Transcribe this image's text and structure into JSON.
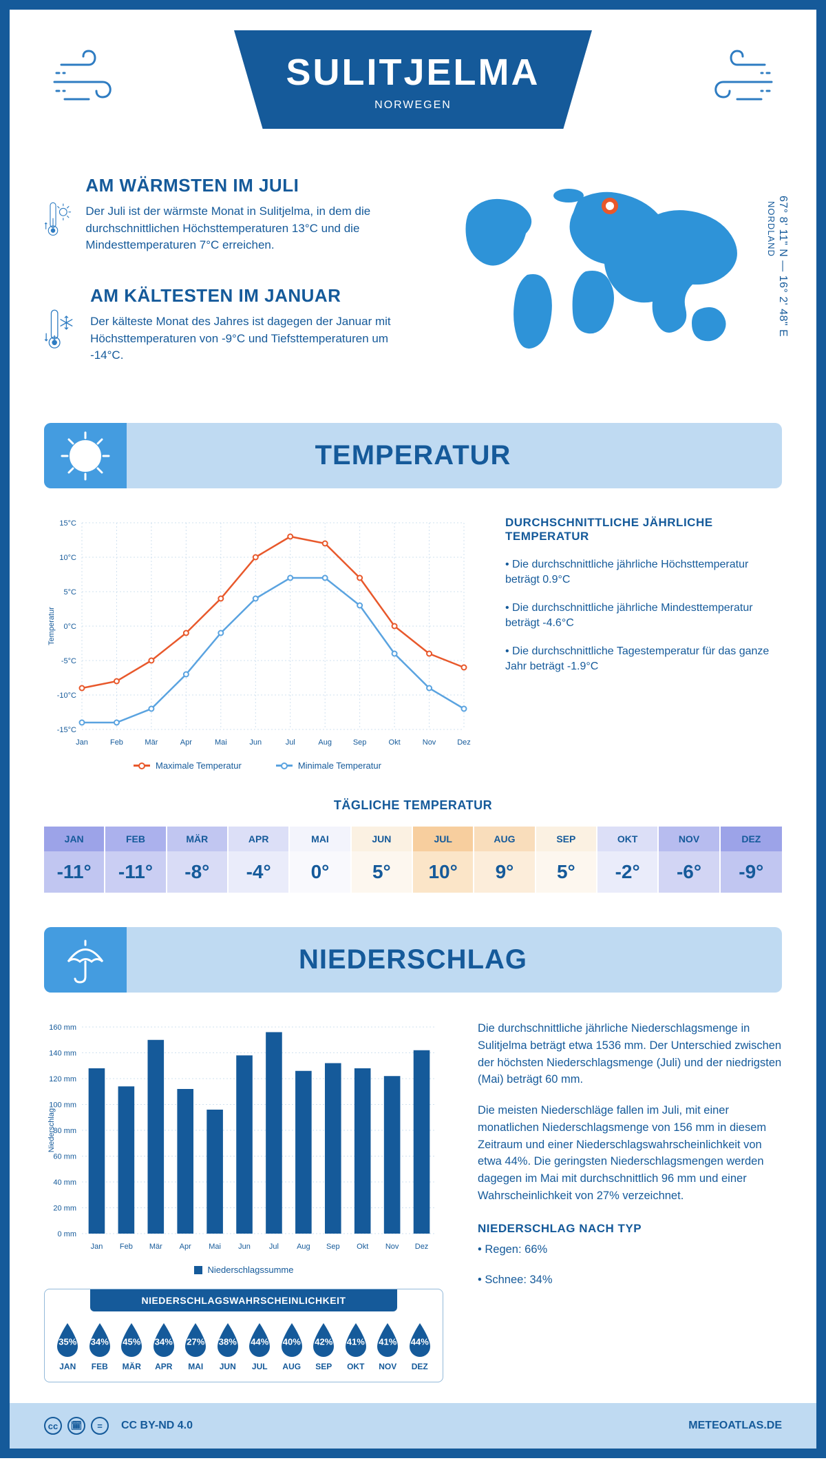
{
  "header": {
    "title": "SULITJELMA",
    "country": "NORWEGEN"
  },
  "coords": {
    "lat": "67° 8' 11\" N",
    "lon": "16° 2' 48\" E",
    "region": "NORDLAND"
  },
  "warmest": {
    "title": "AM WÄRMSTEN IM JULI",
    "text": "Der Juli ist der wärmste Monat in Sulitjelma, in dem die durchschnittlichen Höchsttemperaturen 13°C und die Mindesttemperaturen 7°C erreichen."
  },
  "coldest": {
    "title": "AM KÄLTESTEN IM JANUAR",
    "text": "Der kälteste Monat des Jahres ist dagegen der Januar mit Höchsttemperaturen von -9°C und Tiefsttemperaturen um -14°C."
  },
  "temp_section": {
    "title": "TEMPERATUR"
  },
  "temp_chart": {
    "type": "line",
    "ylabel": "Temperatur",
    "months": [
      "Jan",
      "Feb",
      "Mär",
      "Apr",
      "Mai",
      "Jun",
      "Jul",
      "Aug",
      "Sep",
      "Okt",
      "Nov",
      "Dez"
    ],
    "max_series": {
      "label": "Maximale Temperatur",
      "color": "#e8582b",
      "values": [
        -9,
        -8,
        -5,
        -1,
        4,
        10,
        13,
        12,
        7,
        0,
        -4,
        -6
      ]
    },
    "min_series": {
      "label": "Minimale Temperatur",
      "color": "#5aa3e0",
      "values": [
        -14,
        -14,
        -12,
        -7,
        -1,
        4,
        7,
        7,
        3,
        -4,
        -9,
        -12
      ]
    },
    "ylim": [
      -15,
      15
    ],
    "ytick_step": 5,
    "grid_color": "#cfe0ef",
    "background": "#ffffff",
    "line_width": 2.5,
    "marker_radius": 3.5
  },
  "temp_text": {
    "title": "DURCHSCHNITTLICHE JÄHRLICHE TEMPERATUR",
    "b1": "• Die durchschnittliche jährliche Höchsttemperatur beträgt 0.9°C",
    "b2": "• Die durchschnittliche jährliche Mindesttemperatur beträgt -4.6°C",
    "b3": "• Die durchschnittliche Tagestemperatur für das ganze Jahr beträgt -1.9°C"
  },
  "daily": {
    "title": "TÄGLICHE TEMPERATUR",
    "months": [
      "JAN",
      "FEB",
      "MÄR",
      "APR",
      "MAI",
      "JUN",
      "JUL",
      "AUG",
      "SEP",
      "OKT",
      "NOV",
      "DEZ"
    ],
    "values": [
      "-11°",
      "-11°",
      "-8°",
      "-4°",
      "0°",
      "5°",
      "10°",
      "9°",
      "5°",
      "-2°",
      "-6°",
      "-9°"
    ],
    "head_colors": [
      "#9ca3e8",
      "#abb1ed",
      "#c1c6f1",
      "#dcdff7",
      "#f3f4fc",
      "#fbf1e2",
      "#f7ce9e",
      "#f9ddbb",
      "#fbf1e2",
      "#dcdff7",
      "#b7bcef",
      "#9ca3e8"
    ],
    "val_colors": [
      "#c1c6f1",
      "#cacef3",
      "#d9dcf6",
      "#eaecfa",
      "#f9f9fd",
      "#fdf7ef",
      "#fbe5c8",
      "#fcedda",
      "#fdf7ef",
      "#eaecfa",
      "#d2d5f4",
      "#c1c6f1"
    ]
  },
  "precip_section": {
    "title": "NIEDERSCHLAG"
  },
  "precip_chart": {
    "type": "bar",
    "ylabel": "Niederschlag",
    "legend": "Niederschlagssumme",
    "months": [
      "Jan",
      "Feb",
      "Mär",
      "Apr",
      "Mai",
      "Jun",
      "Jul",
      "Aug",
      "Sep",
      "Okt",
      "Nov",
      "Dez"
    ],
    "values": [
      128,
      114,
      150,
      112,
      96,
      138,
      156,
      126,
      132,
      128,
      122,
      142
    ],
    "ylim": [
      0,
      160
    ],
    "ytick_step": 20,
    "bar_color": "#155a9a",
    "grid_color": "#cfe0ef",
    "background": "#ffffff",
    "bar_width": 0.55
  },
  "precip_text": {
    "p1": "Die durchschnittliche jährliche Niederschlagsmenge in Sulitjelma beträgt etwa 1536 mm. Der Unterschied zwischen der höchsten Niederschlagsmenge (Juli) und der niedrigsten (Mai) beträgt 60 mm.",
    "p2": "Die meisten Niederschläge fallen im Juli, mit einer monatlichen Niederschlagsmenge von 156 mm in diesem Zeitraum und einer Niederschlagswahrscheinlichkeit von etwa 44%. Die geringsten Niederschlagsmengen werden dagegen im Mai mit durchschnittlich 96 mm und einer Wahrscheinlichkeit von 27% verzeichnet.",
    "type_title": "NIEDERSCHLAG NACH TYP",
    "type_1": "• Regen: 66%",
    "type_2": "• Schnee: 34%"
  },
  "prob": {
    "title": "NIEDERSCHLAGSWAHRSCHEINLICHKEIT",
    "months": [
      "JAN",
      "FEB",
      "MÄR",
      "APR",
      "MAI",
      "JUN",
      "JUL",
      "AUG",
      "SEP",
      "OKT",
      "NOV",
      "DEZ"
    ],
    "values": [
      "35%",
      "34%",
      "45%",
      "34%",
      "27%",
      "38%",
      "44%",
      "40%",
      "42%",
      "41%",
      "41%",
      "44%"
    ],
    "drop_color": "#155a9a"
  },
  "footer": {
    "license": "CC BY-ND 4.0",
    "site": "METEOATLAS.DE"
  }
}
